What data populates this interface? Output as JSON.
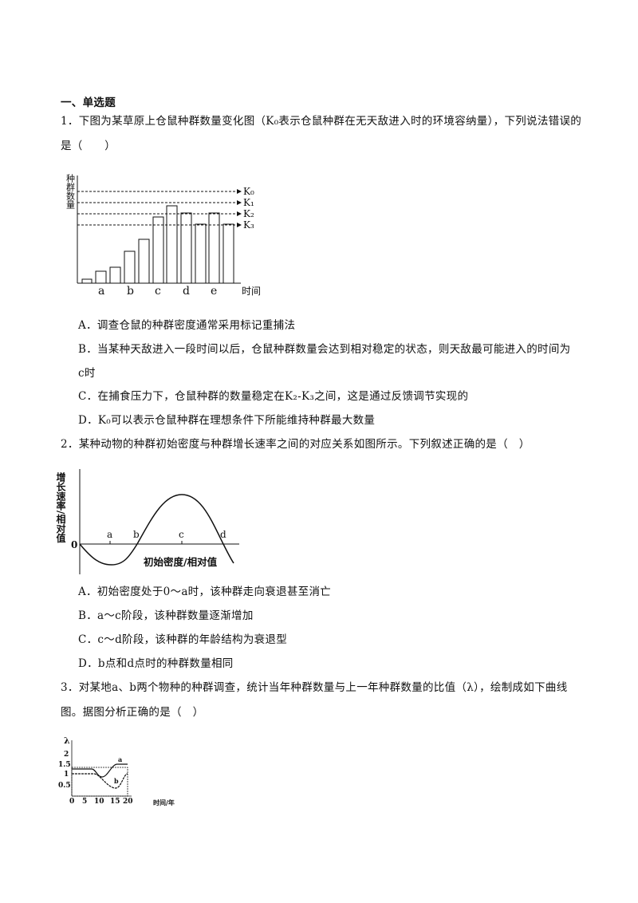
{
  "section_title": "一、单选题",
  "questions": [
    {
      "number": "1．",
      "stem": "下图为某草原上仓鼠种群数量变化图（K₀表示仓鼠种群在无天敌进入时的环境容纳量），下列说法错误的是（　　）",
      "figure": {
        "y_label": "种群数量",
        "x_label": "时间",
        "categories": [
          "a",
          "b",
          "c",
          "d",
          "e"
        ],
        "levels": [
          "K₀",
          "K₁",
          "K₂",
          "K₃"
        ]
      },
      "options": [
        "A．调查仓鼠的种群密度通常采用标记重捕法",
        "B．当某种天敌进入一段时间以后，仓鼠种群数量会达到相对稳定的状态，则天敌最可能进入的时间为c时",
        "C．在捕食压力下，仓鼠种群的数量稳定在K₂-K₃之间，这是通过反馈调节实现的",
        "D．K₀可以表示仓鼠种群在理想条件下所能维持种群最大数量"
      ]
    },
    {
      "number": "2．",
      "stem": "某种动物的种群初始密度与种群增长速率之间的对应关系如图所示。下列叙述正确的是（　）",
      "figure": {
        "y_label": "增长速率/相对值",
        "x_label": "初始密度/相对值",
        "origin": "0",
        "points": [
          "a",
          "b",
          "c",
          "d"
        ]
      },
      "options": [
        "A．初始密度处于0～a时，该种群走向衰退甚至消亡",
        "B．a～c阶段，该种群数量逐渐增加",
        "C．c～d阶段，该种群的年龄结构为衰退型",
        "D．b点和d点时的种群数量相同"
      ]
    },
    {
      "number": "3．",
      "stem": "对某地a、b两个物种的种群调查，统计当年种群数量与上一年种群数量的比值（λ），绘制成如下曲线图。据图分析正确的是（　）",
      "figure": {
        "y_label": "λ",
        "x_label": "时间/年",
        "yticks": [
          "2",
          "1.5",
          "1",
          "0.5"
        ],
        "xticks": [
          "0",
          "5",
          "10",
          "15",
          "20"
        ],
        "curves": [
          "a",
          "b"
        ]
      }
    }
  ]
}
